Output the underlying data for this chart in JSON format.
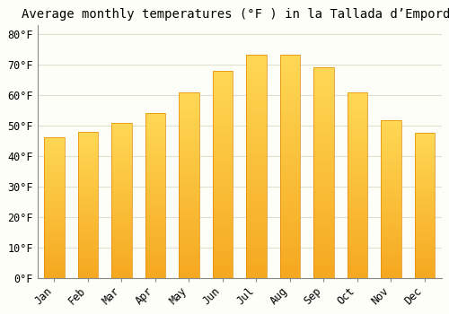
{
  "title": "Average monthly temperatures (°F ) in la Tallada d’Empordà",
  "months": [
    "Jan",
    "Feb",
    "Mar",
    "Apr",
    "May",
    "Jun",
    "Jul",
    "Aug",
    "Sep",
    "Oct",
    "Nov",
    "Dec"
  ],
  "values": [
    46.4,
    48.2,
    51.1,
    54.1,
    61.0,
    68.0,
    73.4,
    73.2,
    69.1,
    61.0,
    52.0,
    47.8
  ],
  "bar_color_center": "#FFD04A",
  "bar_color_edge": "#F0A000",
  "bar_outline": "#E08800",
  "ytick_labels": [
    "0°F",
    "10°F",
    "20°F",
    "30°F",
    "40°F",
    "50°F",
    "60°F",
    "70°F",
    "80°F"
  ],
  "ytick_values": [
    0,
    10,
    20,
    30,
    40,
    50,
    60,
    70,
    80
  ],
  "ylim": [
    0,
    83
  ],
  "background_color": "#FEFEF8",
  "grid_color": "#E0E0D0",
  "title_fontsize": 10,
  "tick_fontsize": 8.5
}
